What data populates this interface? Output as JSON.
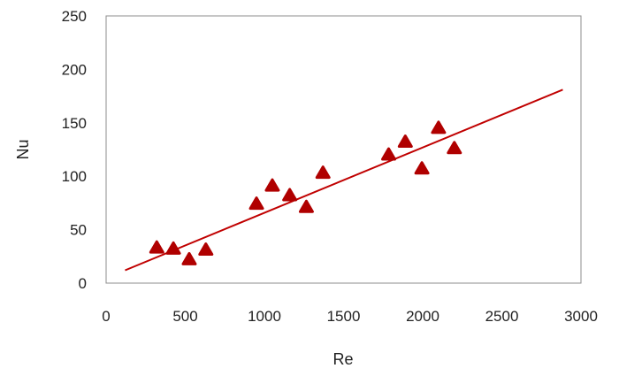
{
  "chart_data": {
    "type": "scatter",
    "title": "",
    "xlabel": "Re",
    "ylabel": "Nu",
    "xlim": [
      0,
      3000
    ],
    "ylim": [
      0,
      250
    ],
    "x_ticks": [
      0,
      500,
      1000,
      1500,
      2000,
      2500,
      3000
    ],
    "y_ticks": [
      0,
      50,
      100,
      150,
      200,
      250
    ],
    "grid": false,
    "legend": "none",
    "marker": "triangle",
    "marker_color": "#b00000",
    "line_color": "#c00000",
    "points": [
      {
        "x": 320,
        "y": 33
      },
      {
        "x": 425,
        "y": 32
      },
      {
        "x": 525,
        "y": 22
      },
      {
        "x": 630,
        "y": 31
      },
      {
        "x": 950,
        "y": 74
      },
      {
        "x": 1050,
        "y": 91
      },
      {
        "x": 1160,
        "y": 82
      },
      {
        "x": 1265,
        "y": 71
      },
      {
        "x": 1370,
        "y": 103
      },
      {
        "x": 1785,
        "y": 120
      },
      {
        "x": 1890,
        "y": 132
      },
      {
        "x": 1995,
        "y": 107
      },
      {
        "x": 2100,
        "y": 145
      },
      {
        "x": 2200,
        "y": 126
      }
    ],
    "trendline": {
      "type": "linear",
      "from": {
        "x": 120,
        "y": 12
      },
      "to": {
        "x": 2885,
        "y": 181
      }
    }
  }
}
